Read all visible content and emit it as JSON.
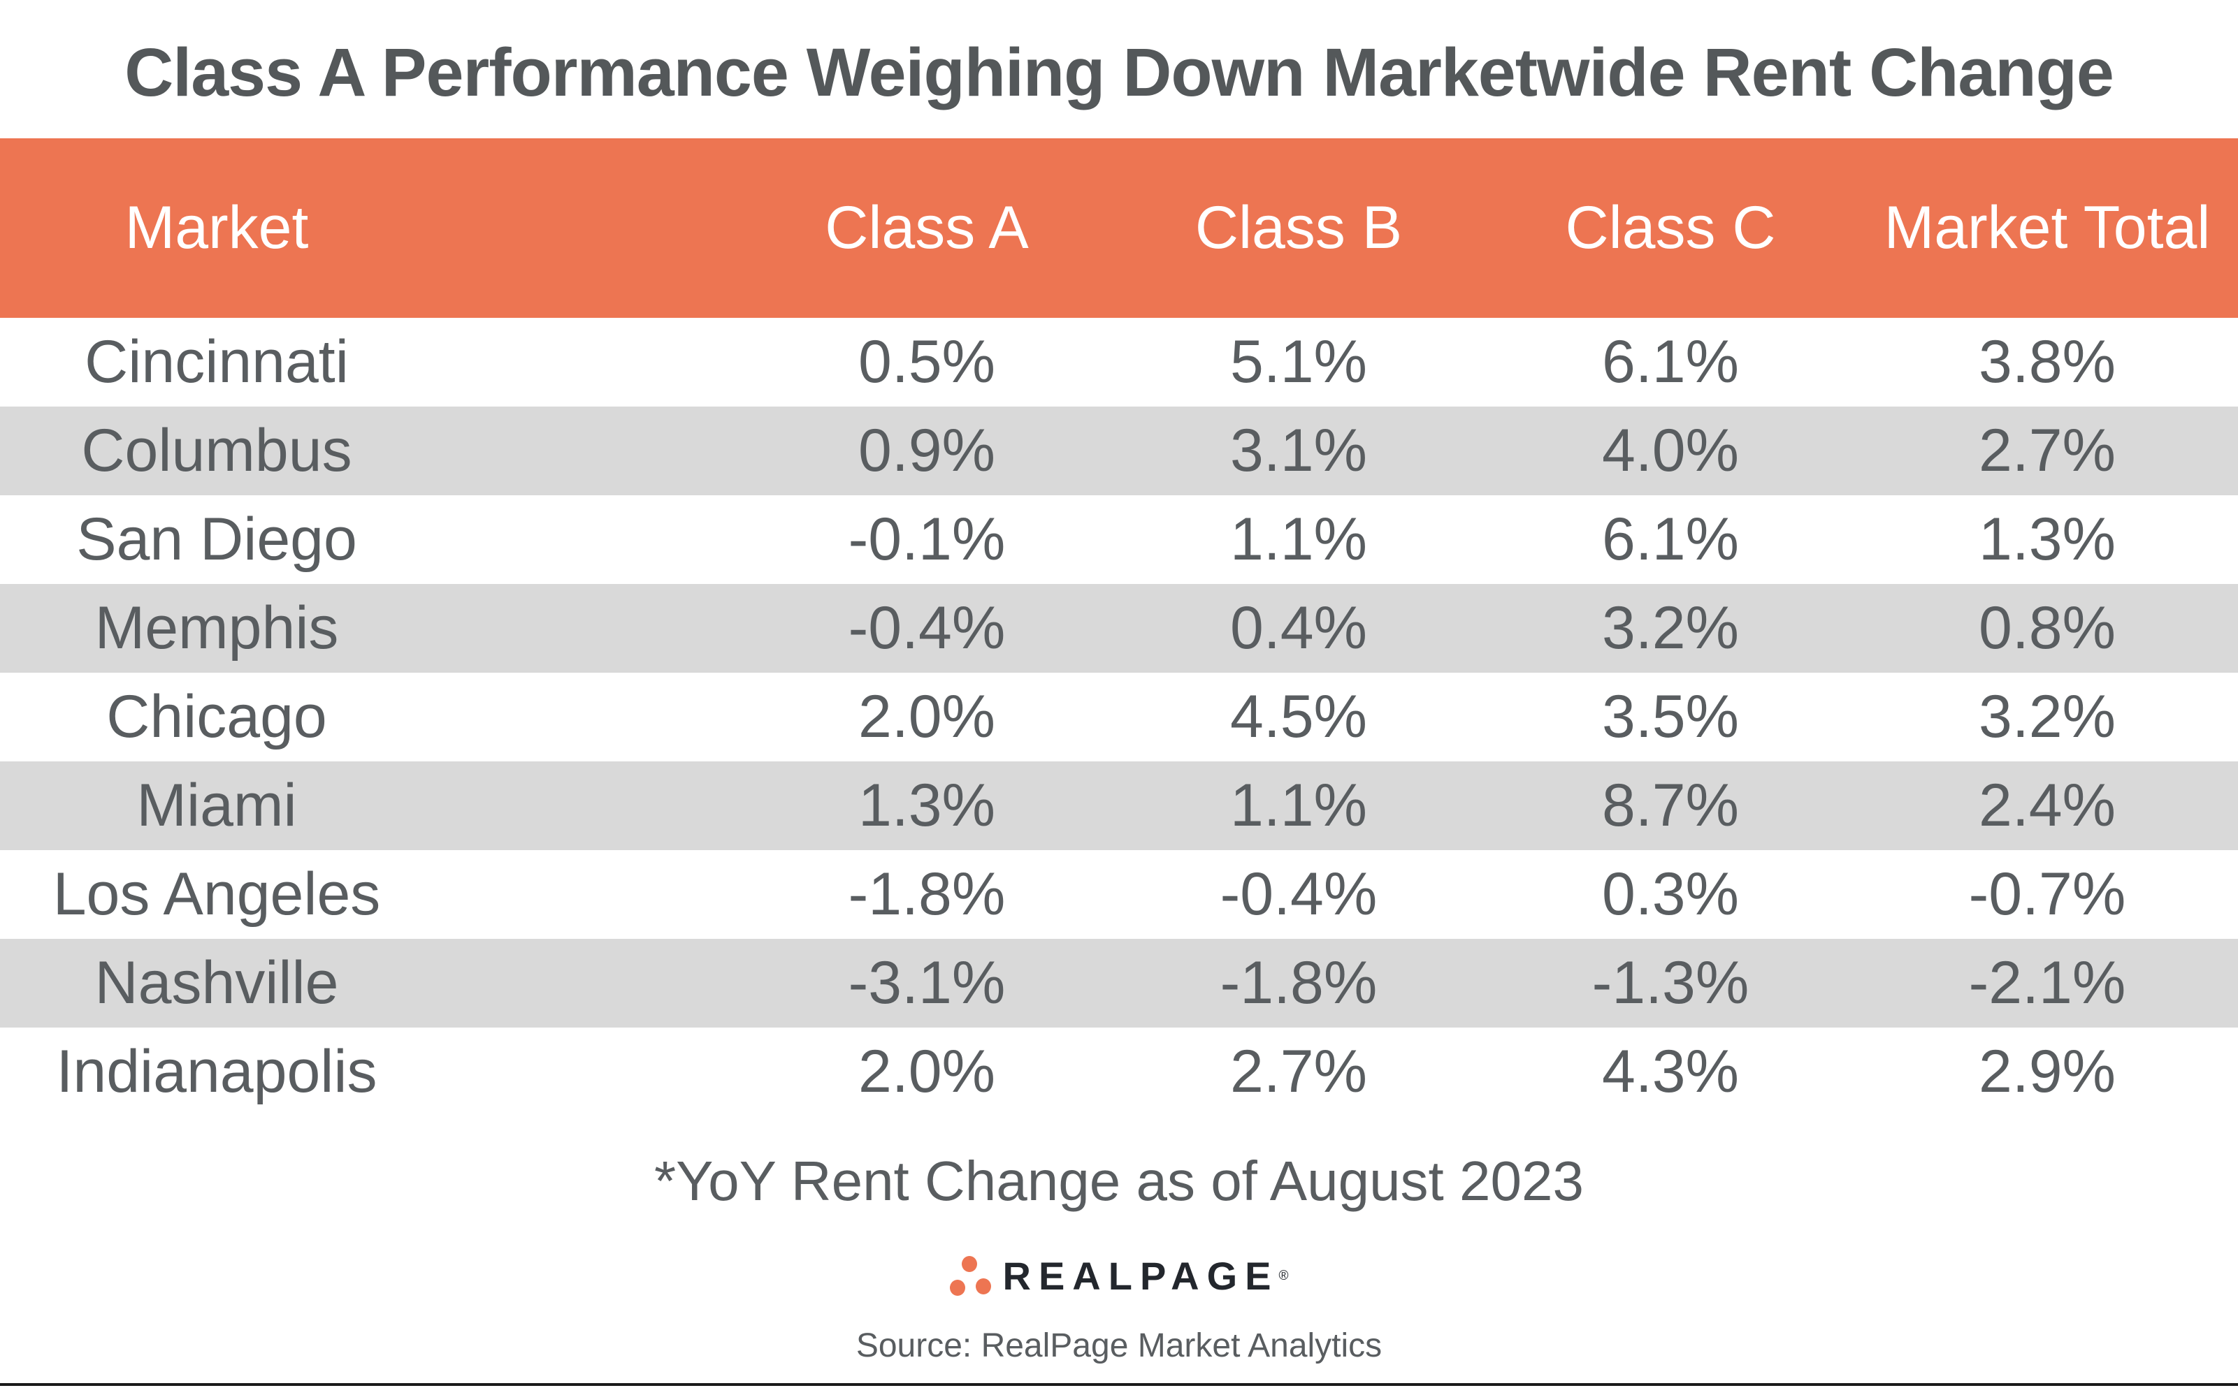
{
  "title": "Class A Performance Weighing Down Marketwide Rent Change",
  "table": {
    "columns": [
      "Market",
      "Class A",
      "Class B",
      "Class C",
      "Market Total"
    ],
    "rows": [
      {
        "market": "Cincinnati",
        "values": [
          "0.5%",
          "5.1%",
          "6.1%",
          "3.8%"
        ]
      },
      {
        "market": "Columbus",
        "values": [
          "0.9%",
          "3.1%",
          "4.0%",
          "2.7%"
        ]
      },
      {
        "market": "San Diego",
        "values": [
          "-0.1%",
          "1.1%",
          "6.1%",
          "1.3%"
        ]
      },
      {
        "market": "Memphis",
        "values": [
          "-0.4%",
          "0.4%",
          "3.2%",
          "0.8%"
        ]
      },
      {
        "market": "Chicago",
        "values": [
          "2.0%",
          "4.5%",
          "3.5%",
          "3.2%"
        ]
      },
      {
        "market": "Miami",
        "values": [
          "1.3%",
          "1.1%",
          "8.7%",
          "2.4%"
        ]
      },
      {
        "market": "Los Angeles",
        "values": [
          "-1.8%",
          "-0.4%",
          "0.3%",
          "-0.7%"
        ]
      },
      {
        "market": "Nashville",
        "values": [
          "-3.1%",
          "-1.8%",
          "-1.3%",
          "-2.1%"
        ]
      },
      {
        "market": "Indianapolis",
        "values": [
          "2.0%",
          "2.7%",
          "4.3%",
          "2.9%"
        ]
      }
    ]
  },
  "footnote": "*YoY Rent Change as of August 2023",
  "logo": {
    "name": "REALPAGE",
    "registered_mark": "®"
  },
  "source": "Source: RealPage Market Analytics",
  "colors": {
    "header_background": "#ED7552",
    "striped_row": "#D9D9D9",
    "title_text": "#54585A",
    "body_text": "#595D60",
    "header_text": "#FFFFFF",
    "logo_text": "#23272D",
    "bottom_rule": "#1A1A1A"
  },
  "chart_data": {
    "type": "table",
    "title": "Class A Performance Weighing Down Marketwide Rent Change",
    "categories": [
      "Cincinnati",
      "Columbus",
      "San Diego",
      "Memphis",
      "Chicago",
      "Miami",
      "Los Angeles",
      "Nashville",
      "Indianapolis"
    ],
    "series": [
      {
        "name": "Class A",
        "values": [
          0.5,
          0.9,
          -0.1,
          -0.4,
          2.0,
          1.3,
          -1.8,
          -3.1,
          2.0
        ]
      },
      {
        "name": "Class B",
        "values": [
          5.1,
          3.1,
          1.1,
          0.4,
          4.5,
          1.1,
          -0.4,
          -1.8,
          2.7
        ]
      },
      {
        "name": "Class C",
        "values": [
          6.1,
          4.0,
          6.1,
          3.2,
          3.5,
          8.7,
          0.3,
          -1.3,
          4.3
        ]
      },
      {
        "name": "Market Total",
        "values": [
          3.8,
          2.7,
          1.3,
          0.8,
          3.2,
          2.4,
          -0.7,
          -2.1,
          2.9
        ]
      }
    ],
    "unit": "percent YoY rent change",
    "as_of": "August 2023"
  }
}
